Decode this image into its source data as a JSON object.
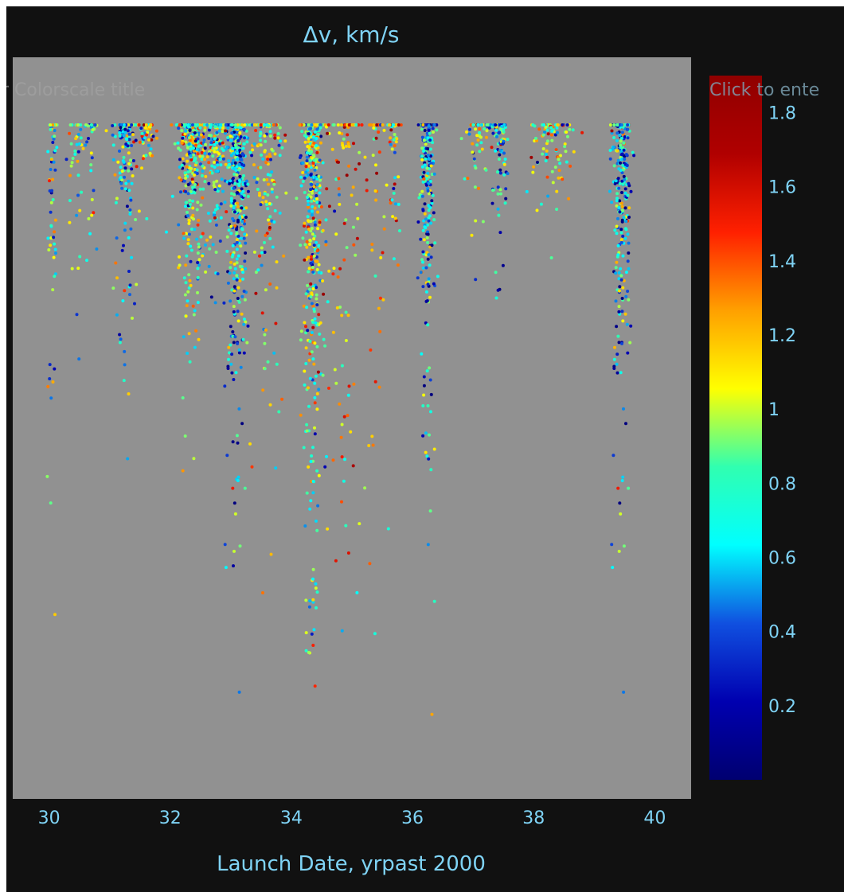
{
  "chart_data": {
    "type": "scatter",
    "title": "Δv, km/s",
    "xlabel": "Launch Date, yrpast 2000",
    "ylabel": "",
    "xlim": [
      29.4,
      40.6
    ],
    "ylim": [
      0,
      1
    ],
    "xticks": [
      "30",
      "32",
      "34",
      "36",
      "38",
      "40"
    ],
    "xtick_values": [
      30,
      32,
      34,
      36,
      38,
      40
    ],
    "colorbar": {
      "title_placeholder_left": "r Colorscale title",
      "title_placeholder_right": "Click to ente",
      "range": [
        0.0,
        1.9
      ],
      "ticks": [
        "1.8",
        "1.6",
        "1.4",
        "1.2",
        "1",
        "0.8",
        "0.6",
        "0.4",
        "0.2"
      ],
      "tick_values": [
        1.8,
        1.6,
        1.4,
        1.2,
        1.0,
        0.8,
        0.6,
        0.4,
        0.2
      ],
      "colorscale": [
        "#000070",
        "#0000b0",
        "#1050e0",
        "#00ffff",
        "#30ffb0",
        "#ffff00",
        "#ffa000",
        "#ff2000",
        "#b00000",
        "#900000"
      ]
    },
    "clusters": [
      {
        "x": 30.05,
        "spread": 0.08,
        "count": 70,
        "depth": 0.34,
        "vbias": 0.75
      },
      {
        "x": 30.45,
        "spread": 0.15,
        "count": 40,
        "depth": 0.2,
        "vbias": 0.9
      },
      {
        "x": 30.7,
        "spread": 0.1,
        "count": 35,
        "depth": 0.12,
        "vbias": 0.7
      },
      {
        "x": 31.25,
        "spread": 0.18,
        "count": 160,
        "depth": 0.22,
        "vbias": 0.6
      },
      {
        "x": 31.6,
        "spread": 0.15,
        "count": 60,
        "depth": 0.08,
        "vbias": 1.0
      },
      {
        "x": 32.35,
        "spread": 0.22,
        "count": 380,
        "depth": 0.2,
        "vbias": 0.8
      },
      {
        "x": 32.75,
        "spread": 0.15,
        "count": 180,
        "depth": 0.15,
        "vbias": 0.7
      },
      {
        "x": 33.1,
        "spread": 0.18,
        "count": 520,
        "depth": 0.32,
        "vbias": 0.6
      },
      {
        "x": 33.6,
        "spread": 0.25,
        "count": 180,
        "depth": 0.28,
        "vbias": 0.95
      },
      {
        "x": 34.35,
        "spread": 0.18,
        "count": 480,
        "depth": 0.5,
        "vbias": 0.85
      },
      {
        "x": 34.9,
        "spread": 0.35,
        "count": 120,
        "depth": 0.55,
        "vbias": 1.2
      },
      {
        "x": 35.4,
        "spread": 0.2,
        "count": 40,
        "depth": 0.58,
        "vbias": 1.2
      },
      {
        "x": 35.7,
        "spread": 0.1,
        "count": 50,
        "depth": 0.2,
        "vbias": 1.0
      },
      {
        "x": 36.25,
        "spread": 0.12,
        "count": 260,
        "depth": 0.32,
        "vbias": 0.55
      },
      {
        "x": 37.1,
        "spread": 0.25,
        "count": 60,
        "depth": 0.08,
        "vbias": 0.9
      },
      {
        "x": 37.45,
        "spread": 0.12,
        "count": 100,
        "depth": 0.15,
        "vbias": 0.6
      },
      {
        "x": 38.3,
        "spread": 0.35,
        "count": 100,
        "depth": 0.12,
        "vbias": 0.9
      },
      {
        "x": 39.45,
        "spread": 0.15,
        "count": 320,
        "depth": 0.32,
        "vbias": 0.6
      }
    ]
  }
}
